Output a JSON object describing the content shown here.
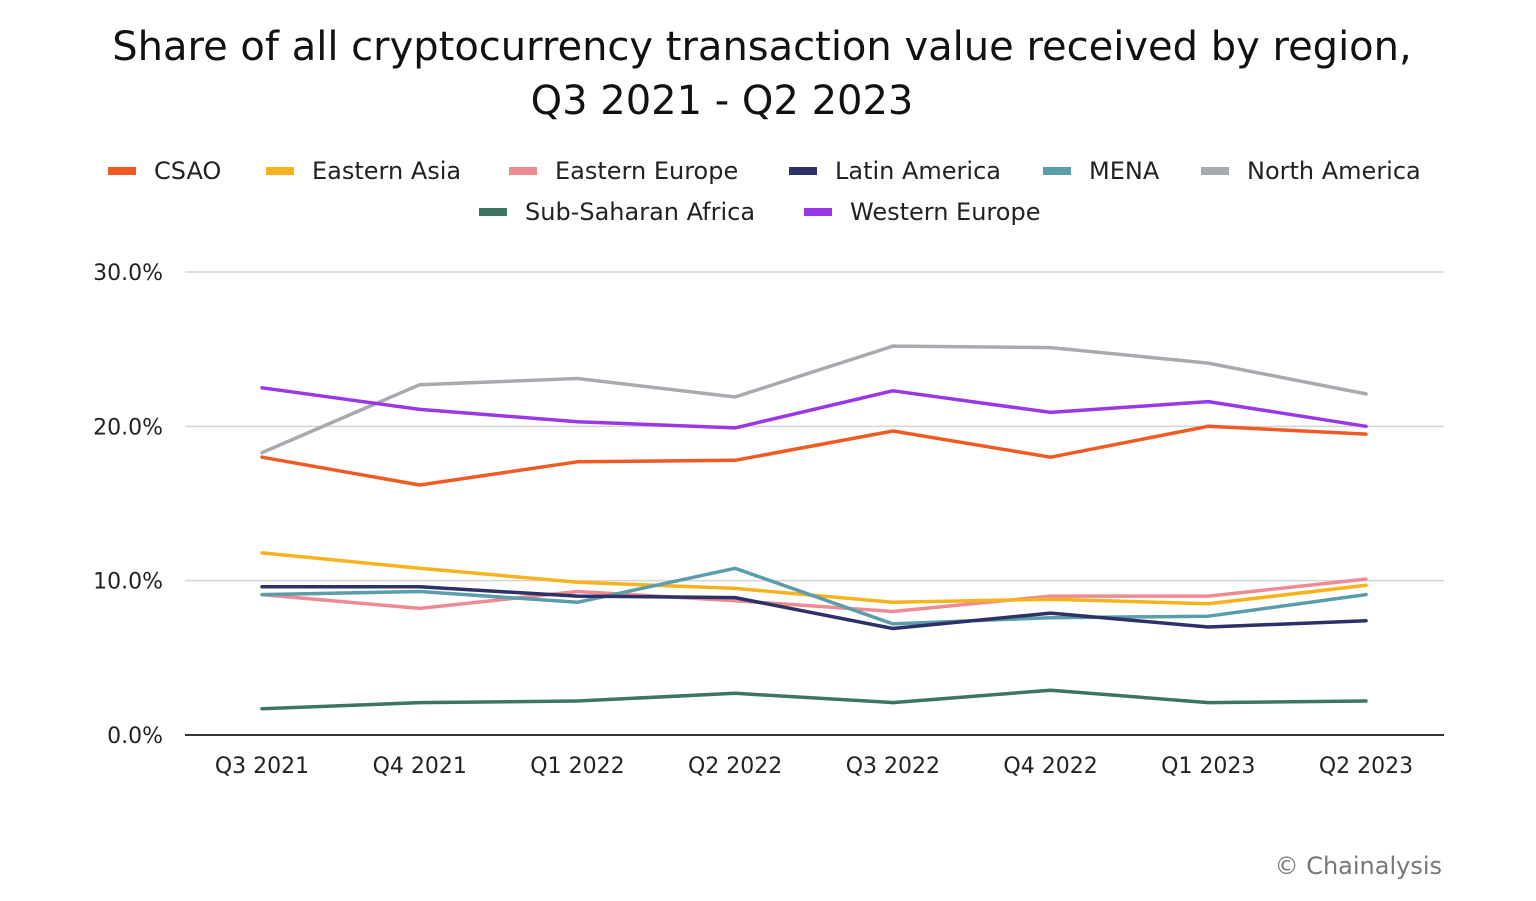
{
  "chart_data": {
    "type": "line",
    "title": "Share of all cryptocurrency transaction value received by region,",
    "subtitle": "Q3 2021 - Q2 2023",
    "xlabel": "",
    "ylabel": "",
    "ylim": [
      0,
      30
    ],
    "yticks": [
      "0.0%",
      "10.0%",
      "20.0%",
      "30.0%"
    ],
    "ytick_values": [
      0,
      10,
      20,
      30
    ],
    "categories": [
      "Q3 2021",
      "Q4 2021",
      "Q1 2022",
      "Q2 2022",
      "Q3 2022",
      "Q4 2022",
      "Q1 2023",
      "Q2 2023"
    ],
    "grid": true,
    "legend_position": "top",
    "series": [
      {
        "name": "CSAO",
        "color": "#F15A22",
        "values": [
          18.0,
          16.2,
          17.7,
          17.8,
          19.7,
          18.0,
          20.0,
          19.5
        ]
      },
      {
        "name": "Eastern Asia",
        "color": "#F7B21C",
        "values": [
          11.8,
          10.8,
          9.9,
          9.5,
          8.6,
          8.8,
          8.5,
          9.7
        ]
      },
      {
        "name": "Eastern Europe",
        "color": "#EE8A92",
        "values": [
          9.1,
          8.2,
          9.3,
          8.7,
          8.0,
          9.0,
          9.0,
          10.1
        ]
      },
      {
        "name": "Latin America",
        "color": "#2C3168",
        "values": [
          9.6,
          9.6,
          9.0,
          8.9,
          6.9,
          7.9,
          7.0,
          7.4
        ]
      },
      {
        "name": "MENA",
        "color": "#5B9DAB",
        "values": [
          9.1,
          9.3,
          8.6,
          10.8,
          7.2,
          7.6,
          7.7,
          9.1
        ]
      },
      {
        "name": "North America",
        "color": "#A7ABB0",
        "values": [
          18.3,
          22.7,
          23.1,
          21.9,
          25.2,
          25.1,
          24.1,
          22.1
        ]
      },
      {
        "name": "Sub-Saharan Africa",
        "color": "#3D7564",
        "values": [
          1.7,
          2.1,
          2.2,
          2.7,
          2.1,
          2.9,
          2.1,
          2.2
        ]
      },
      {
        "name": "Western Europe",
        "color": "#9A37E6",
        "values": [
          22.5,
          21.1,
          20.3,
          19.9,
          22.3,
          20.9,
          21.6,
          20.0
        ]
      }
    ],
    "source": "© Chainalysis"
  }
}
